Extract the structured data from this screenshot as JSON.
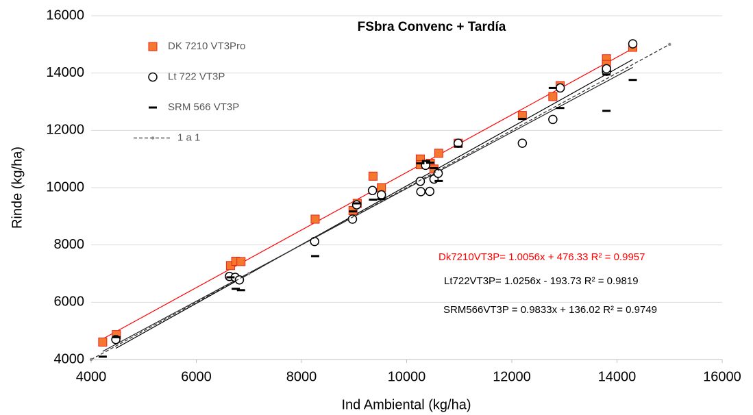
{
  "chart_data": {
    "type": "scatter",
    "title": "FSbra Convenc + Tardía",
    "x_label": "Ind Ambiental (kg/ha)",
    "y_label": "Rinde (kg/ha)",
    "xlim": [
      4000,
      16000
    ],
    "xticks": [
      4000,
      6000,
      8000,
      10000,
      12000,
      14000,
      16000
    ],
    "ylim": [
      4000,
      16000
    ],
    "yticks": [
      4000,
      6000,
      8000,
      10000,
      12000,
      14000,
      16000
    ],
    "grid": true,
    "legend": "upper left",
    "series": [
      {
        "name": "DK 7210 VT3Pro",
        "marker": "square",
        "color": "#f4792f",
        "edge_color": "#e8231a",
        "x": [
          4220,
          4480,
          6650,
          6750,
          6850,
          8260,
          8980,
          9060,
          9360,
          9520,
          10260,
          10260,
          10370,
          10450,
          10520,
          10610,
          10980,
          12200,
          12780,
          12920,
          13800,
          13800,
          14300
        ],
        "values": [
          4610,
          4870,
          7280,
          7430,
          7420,
          8900,
          9200,
          9450,
          10400,
          10000,
          11000,
          10800,
          10800,
          10850,
          10650,
          11200,
          11550,
          12520,
          13180,
          13560,
          14500,
          14300,
          14900
        ],
        "trendline": {
          "slope": 1.0056,
          "intercept": 476.33,
          "color": "#ff0000"
        }
      },
      {
        "name": "Lt 722 VT3P",
        "marker": "circle",
        "color": "#000000",
        "x": [
          4470,
          6630,
          6740,
          6820,
          8250,
          8970,
          9050,
          9350,
          9520,
          10260,
          10270,
          10360,
          10440,
          10520,
          10600,
          10980,
          12200,
          12780,
          12920,
          13800,
          13800,
          14300
        ],
        "values": [
          4700,
          6900,
          6870,
          6780,
          8120,
          8900,
          9400,
          9900,
          9750,
          10220,
          9860,
          10780,
          9870,
          10300,
          10500,
          11550,
          11550,
          12380,
          13480,
          14060,
          14150,
          15020
        ],
        "trendline": {
          "slope": 1.0256,
          "intercept": -193.73,
          "color": "#000000"
        }
      },
      {
        "name": "SRM 566 VT3P",
        "marker": "dash",
        "color": "#000000",
        "x": [
          4220,
          4480,
          6650,
          6750,
          6850,
          8260,
          8980,
          9060,
          9360,
          9520,
          10260,
          10370,
          10450,
          10520,
          10610,
          10980,
          12200,
          12780,
          12920,
          13800,
          13800,
          14300
        ],
        "values": [
          4100,
          4780,
          6870,
          6470,
          6420,
          7610,
          9170,
          9450,
          9580,
          9600,
          10850,
          10930,
          10870,
          10680,
          10230,
          11430,
          12400,
          13480,
          12780,
          12680,
          13950,
          13760
        ],
        "trendline": {
          "slope": 0.9833,
          "intercept": 136.02,
          "color": "#222222"
        }
      },
      {
        "name": "1 a 1",
        "marker": "dashed-line",
        "color": "#333333",
        "x": [
          4000,
          7000,
          15000
        ],
        "values": [
          4000,
          7000,
          15000
        ]
      }
    ],
    "annotations": [
      {
        "text": "Dk7210VT3P= 1.0056x + 476.33 R² = 0.9957",
        "color": "#ff0000"
      },
      {
        "text": "Lt722VT3P= 1.0256x - 193.73 R² = 0.9819",
        "color": "#000000"
      },
      {
        "text": "SRM566VT3P = 0.9833x + 136.02 R² = 0.9749",
        "color": "#000000"
      }
    ]
  }
}
